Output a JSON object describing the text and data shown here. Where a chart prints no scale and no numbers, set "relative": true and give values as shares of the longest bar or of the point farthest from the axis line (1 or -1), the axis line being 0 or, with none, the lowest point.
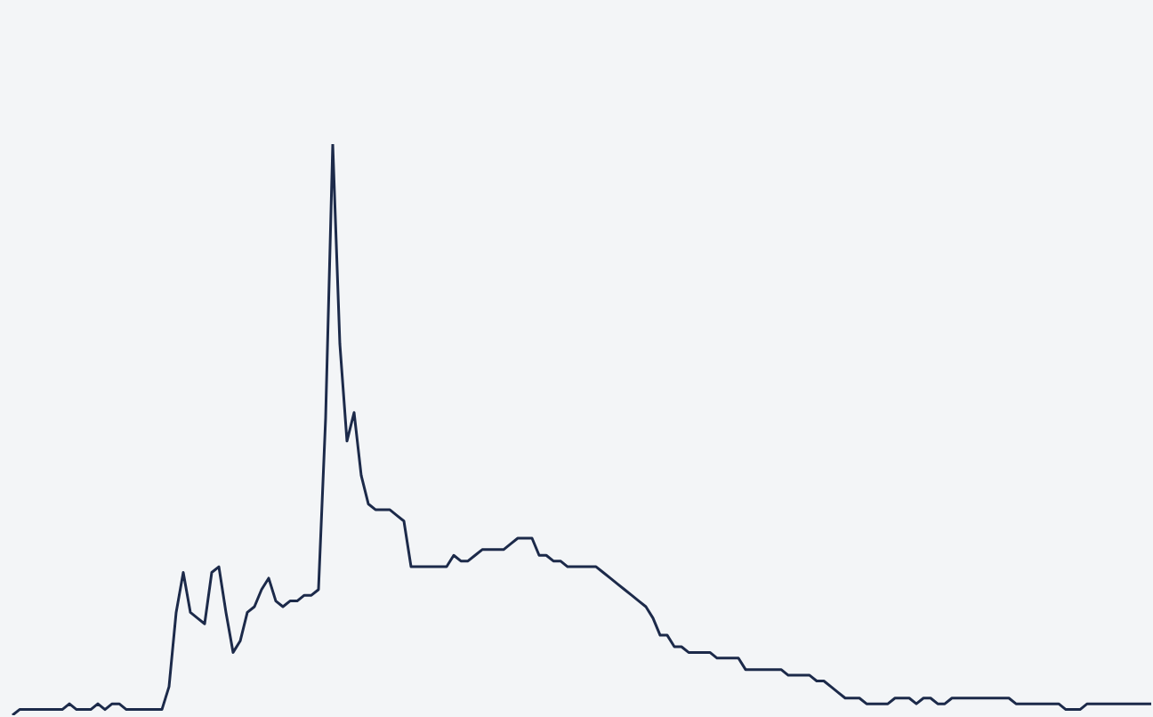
{
  "chart_data": {
    "type": "line",
    "relative": true,
    "categories": [
      null,
      null,
      null,
      null,
      null,
      null,
      null,
      null,
      null,
      null,
      null,
      null,
      null,
      null,
      null,
      null,
      null,
      null,
      null,
      null,
      null,
      null,
      null,
      null,
      null,
      null,
      null,
      null,
      null,
      null,
      null,
      null,
      null,
      null,
      null,
      null,
      null,
      null,
      null,
      null,
      null,
      null,
      null,
      null,
      null,
      null,
      null,
      null,
      null,
      null,
      null,
      null,
      null,
      null,
      null,
      null,
      null,
      null,
      null,
      null,
      null,
      null,
      null,
      null,
      null,
      null,
      null,
      null,
      null,
      null,
      null,
      null,
      null,
      null,
      null,
      null,
      null,
      null,
      null,
      null,
      null,
      null,
      null,
      null,
      null,
      null,
      null,
      null,
      null,
      null,
      null,
      null,
      null,
      null,
      null,
      null,
      null,
      null,
      null,
      null,
      null,
      null,
      null,
      null,
      null,
      null,
      null,
      null,
      null,
      null,
      null,
      null,
      null,
      null,
      null,
      null,
      null,
      null,
      null,
      null,
      null,
      null,
      null,
      null,
      null,
      null,
      null,
      null,
      null,
      null,
      null,
      null,
      null,
      null,
      null,
      null,
      null,
      null,
      null,
      null,
      null,
      null,
      null,
      null,
      null,
      null,
      null,
      null,
      null,
      null,
      null,
      null,
      null,
      null,
      null,
      null,
      null,
      null,
      null,
      null,
      null
    ],
    "series": [
      {
        "color": "#1c2a4a",
        "values": [
          0.0,
          0.01,
          0.01,
          0.01,
          0.01,
          0.01,
          0.01,
          0.01,
          0.02,
          0.01,
          0.01,
          0.01,
          0.02,
          0.01,
          0.02,
          0.02,
          0.01,
          0.01,
          0.01,
          0.01,
          0.01,
          0.01,
          0.05,
          0.18,
          0.25,
          0.18,
          0.17,
          0.16,
          0.25,
          0.26,
          0.18,
          0.11,
          0.13,
          0.18,
          0.19,
          0.22,
          0.24,
          0.2,
          0.19,
          0.2,
          0.2,
          0.21,
          0.21,
          0.22,
          0.52,
          1,
          0.65,
          0.48,
          0.53,
          0.42,
          0.37,
          0.36,
          0.36,
          0.36,
          0.35,
          0.34,
          0.26,
          0.26,
          0.26,
          0.26,
          0.26,
          0.26,
          0.28,
          0.27,
          0.27,
          0.28,
          0.29,
          0.29,
          0.29,
          0.29,
          0.3,
          0.31,
          0.31,
          0.31,
          0.28,
          0.28,
          0.27,
          0.27,
          0.26,
          0.26,
          0.26,
          0.26,
          0.26,
          0.25,
          0.24,
          0.23,
          0.22,
          0.21,
          0.2,
          0.19,
          0.17,
          0.14,
          0.14,
          0.12,
          0.12,
          0.11,
          0.11,
          0.11,
          0.11,
          0.1,
          0.1,
          0.1,
          0.1,
          0.08,
          0.08,
          0.08,
          0.08,
          0.08,
          0.08,
          0.07,
          0.07,
          0.07,
          0.07,
          0.06,
          0.06,
          0.05,
          0.04,
          0.03,
          0.03,
          0.03,
          0.02,
          0.02,
          0.02,
          0.02,
          0.03,
          0.03,
          0.03,
          0.02,
          0.03,
          0.03,
          0.02,
          0.02,
          0.03,
          0.03,
          0.03,
          0.03,
          0.03,
          0.03,
          0.03,
          0.03,
          0.03,
          0.02,
          0.02,
          0.02,
          0.02,
          0.02,
          0.02,
          0.02,
          0.01,
          0.01,
          0.01,
          0.02,
          0.02,
          0.02,
          0.02,
          0.02,
          0.02,
          0.02,
          0.02,
          0.02,
          0.02
        ]
      }
    ]
  }
}
